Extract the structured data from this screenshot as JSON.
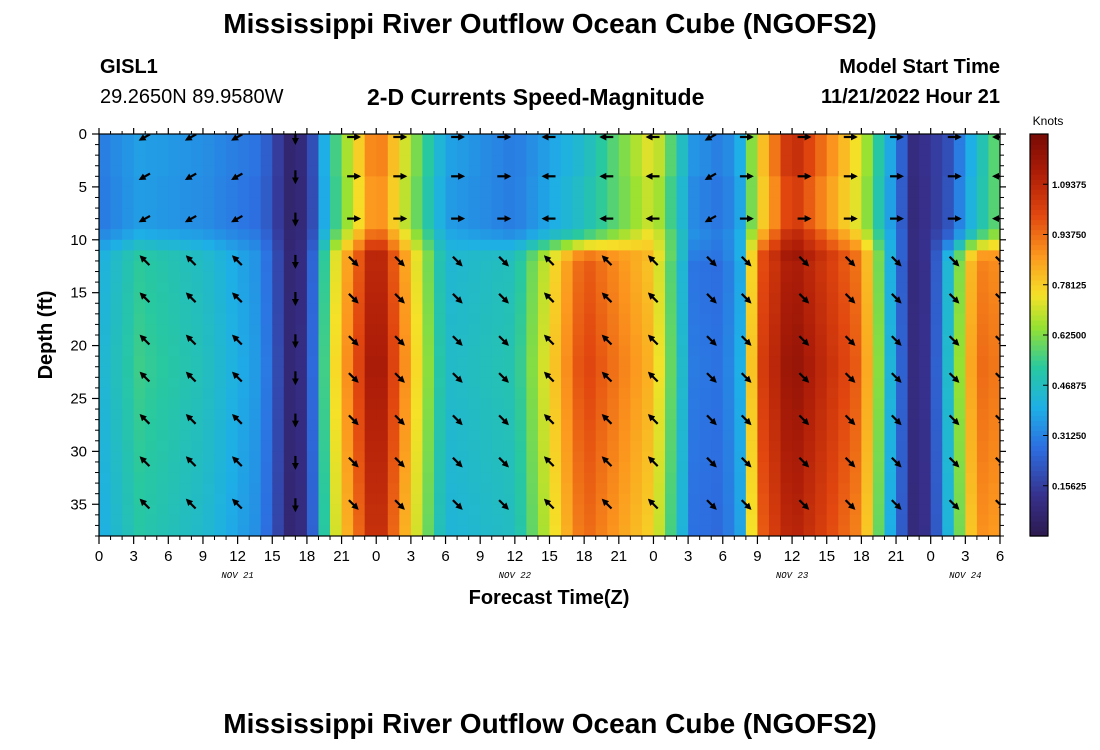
{
  "header": {
    "title": "Mississippi River Outflow Ocean Cube (NGOFS2)",
    "station": "GISL1",
    "coords": "29.2650N  89.9580W",
    "subtitle": "2-D Currents Speed-Magnitude",
    "model_start_label": "Model Start Time",
    "model_start_value": "11/21/2022 Hour 21"
  },
  "footer": {
    "title": "Mississippi River Outflow Ocean Cube (NGOFS2)"
  },
  "chart_data": {
    "type": "heatmap",
    "title": "2-D Currents Speed-Magnitude",
    "xlabel": "Forecast Time(Z)",
    "ylabel": "Depth (ft)",
    "x_unit": "forecast hours",
    "xlim": [
      0,
      78
    ],
    "ylim": [
      0,
      38
    ],
    "x_ticks": [
      0,
      3,
      6,
      9,
      12,
      15,
      18,
      21,
      24,
      27,
      30,
      33,
      36,
      39,
      42,
      45,
      48,
      51,
      54,
      57,
      60,
      63,
      66,
      69,
      72,
      75,
      78
    ],
    "x_tick_labels": [
      "0",
      "3",
      "6",
      "9",
      "12",
      "15",
      "18",
      "21",
      "0",
      "3",
      "6",
      "9",
      "12",
      "15",
      "18",
      "21",
      "0",
      "3",
      "6",
      "9",
      "12",
      "15",
      "18",
      "21",
      "0",
      "3",
      "6"
    ],
    "y_ticks": [
      0,
      5,
      10,
      15,
      20,
      25,
      30,
      35
    ],
    "y_tick_labels": [
      "0",
      "5",
      "10",
      "15",
      "20",
      "25",
      "30",
      "35"
    ],
    "date_labels": [
      {
        "text": "NOV 21",
        "x": 12
      },
      {
        "text": "NOV 22",
        "x": 36
      },
      {
        "text": "NOV 23",
        "x": 60
      },
      {
        "text": "NOV 24",
        "x": 75
      }
    ],
    "colorbar": {
      "unit": "Knots",
      "min": 0,
      "max": 1.25,
      "ticks": [
        0.15625,
        0.3125,
        0.46875,
        0.625,
        0.78125,
        0.9375,
        1.09375
      ],
      "tick_labels": [
        "0.15625",
        "0.31250",
        "0.46875",
        "0.62500",
        "0.78125",
        "0.93750",
        "1.09375"
      ]
    },
    "speed_profile": {
      "hours": [
        0,
        3.5,
        9,
        14,
        16.5,
        18,
        20,
        24,
        30,
        36,
        42,
        48,
        51.5,
        54,
        55.5,
        57,
        60,
        66,
        69,
        70.5,
        72,
        73.5,
        76,
        78
      ],
      "surface_knots": [
        0.3,
        0.37,
        0.34,
        0.28,
        0.07,
        0.1,
        0.5,
        0.95,
        0.38,
        0.3,
        0.45,
        0.75,
        0.35,
        0.3,
        0.4,
        0.75,
        1.1,
        0.72,
        0.32,
        0.1,
        0.14,
        0.2,
        0.45,
        0.62
      ],
      "deep_knots": [
        0.42,
        0.55,
        0.48,
        0.35,
        0.08,
        0.12,
        0.7,
        1.2,
        0.45,
        0.5,
        1.02,
        0.82,
        0.3,
        0.28,
        0.4,
        1.0,
        1.2,
        0.95,
        0.32,
        0.1,
        0.14,
        0.45,
        0.95,
        0.92
      ]
    },
    "arrow_columns": {
      "hours": [
        4,
        8,
        12,
        17,
        22,
        26,
        31,
        35,
        39,
        44,
        48,
        53,
        56,
        61,
        65,
        69,
        74,
        78
      ],
      "depths_ft": [
        0,
        4,
        8,
        12,
        15.5,
        19.5,
        23,
        27,
        31,
        35
      ],
      "surface_dir": [
        "SW",
        "SW",
        "SW",
        "S",
        "E",
        "E",
        "E",
        "E",
        "W",
        "W",
        "W",
        "SW",
        "E",
        "E",
        "E",
        "E",
        "E",
        "W"
      ],
      "deep_dir": [
        "NW",
        "NW",
        "NW",
        "S",
        "SE",
        "SE",
        "SE",
        "SE",
        "NW",
        "NW",
        "NW",
        "SE",
        "SE",
        "SE",
        "SE",
        "SE",
        "SE",
        "SE"
      ]
    }
  }
}
